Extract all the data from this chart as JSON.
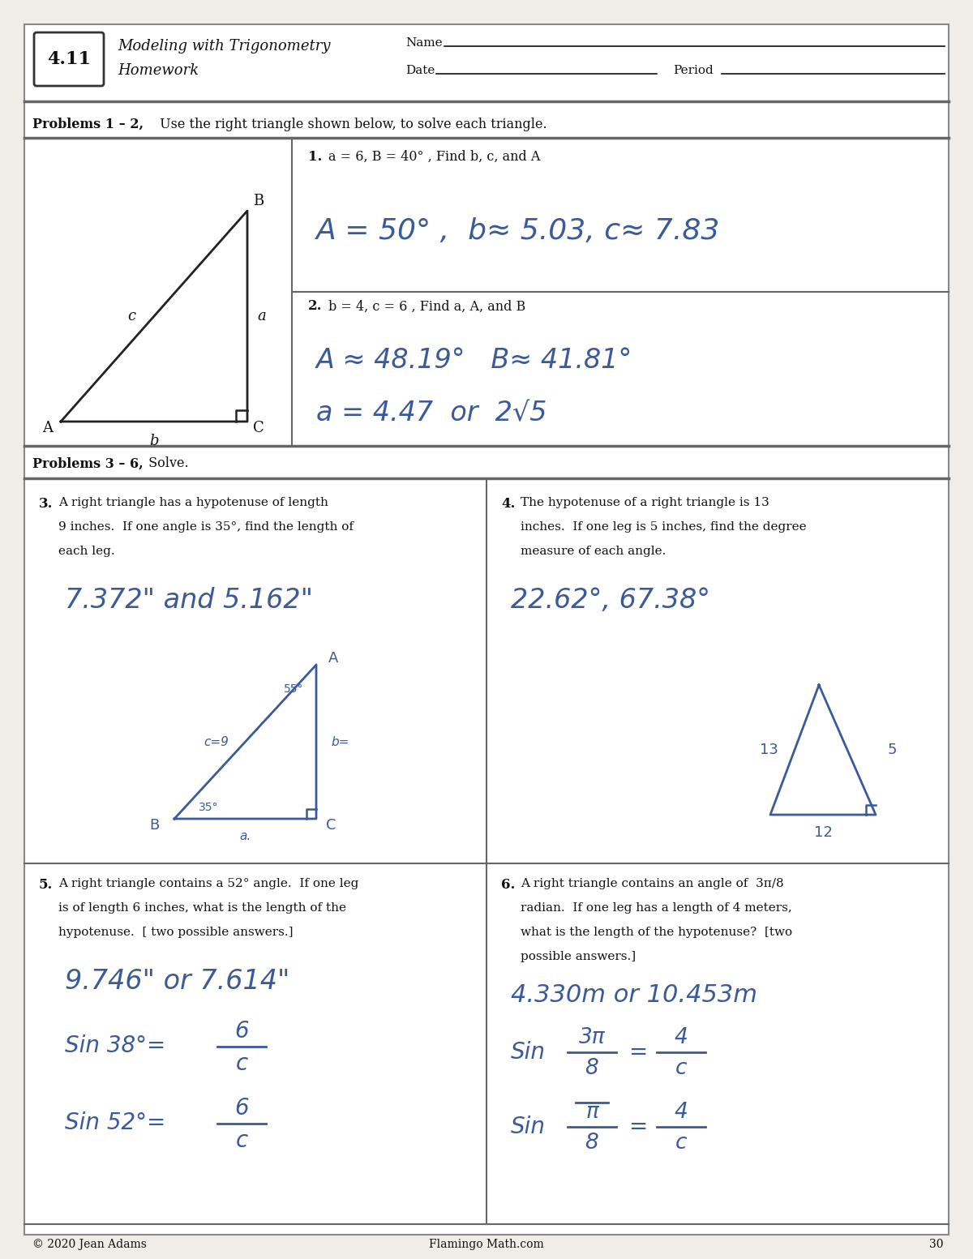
{
  "page_bg": "#f0ede8",
  "content_bg": "#ffffff",
  "header_number": "4.11",
  "header_title_line1": "Modeling with Trigonometry",
  "header_title_line2": "Homework",
  "name_label": "Name",
  "date_label": "Date",
  "period_label": "Period",
  "problems_12_header_bold": "Problems 1 – 2,",
  "problems_12_header_rest": " Use the right triangle shown below, to solve each triangle.",
  "problems_36_header_bold": "Problems 3 – 6,",
  "problems_36_header_rest": " Solve.",
  "footer_copyright": "© 2020 Jean Adams",
  "footer_website": "Flamingo Math.com",
  "footer_page": "30",
  "handwriting_color": "#3a5a9a",
  "text_color": "#111111",
  "grid_color": "#666666"
}
